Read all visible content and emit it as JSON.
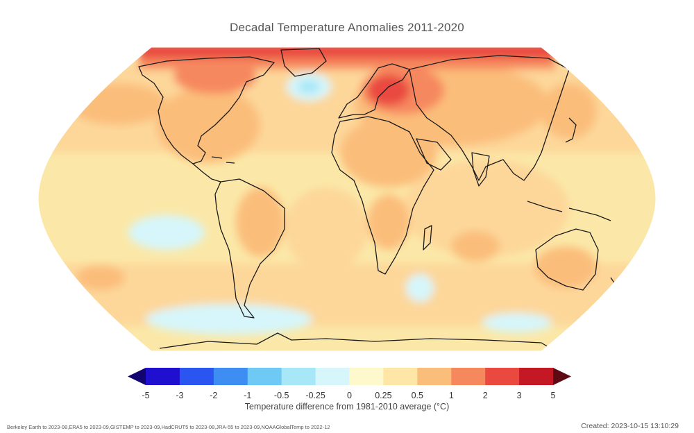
{
  "title": "Decadal Temperature Anomalies 2011-2020",
  "colorbar": {
    "label": "Temperature difference from 1981-2010 average (°C)",
    "ticks": [
      "-5",
      "-3",
      "-2",
      "-1",
      "-0.5",
      "-0.25",
      "0",
      "0.25",
      "0.5",
      "1",
      "2",
      "3",
      "5"
    ],
    "colors": [
      "#1f0fce",
      "#2b55f0",
      "#3d8df2",
      "#6ecaf5",
      "#a7e7f8",
      "#d6f6fb",
      "#fdf9cc",
      "#fde6a6",
      "#fbbd7a",
      "#f6885e",
      "#e9493f",
      "#c41825",
      "#8a0a17"
    ],
    "extend_min_color": "#12046e",
    "extend_max_color": "#5e0a14"
  },
  "palette": {
    "neutral": "#fbe8a8",
    "light_warm": "#fdd79a",
    "warm": "#fbbd7a",
    "hot": "#f6885e",
    "very_hot": "#e9493f",
    "extreme": "#c41825",
    "cool": "#d6f6fb",
    "cold": "#a7e7f8",
    "coastline": "#1a1a1a"
  },
  "footer": {
    "sources": "Berkeley Earth to 2023-08,ERA5 to 2023-09,GISTEMP to 2023-09,HadCRUT5 to 2023-08,JRA-55 to 2023-09,NOAAGlobalTemp to 2022-12",
    "created": "Created: 2023-10-15 13:10:29"
  }
}
